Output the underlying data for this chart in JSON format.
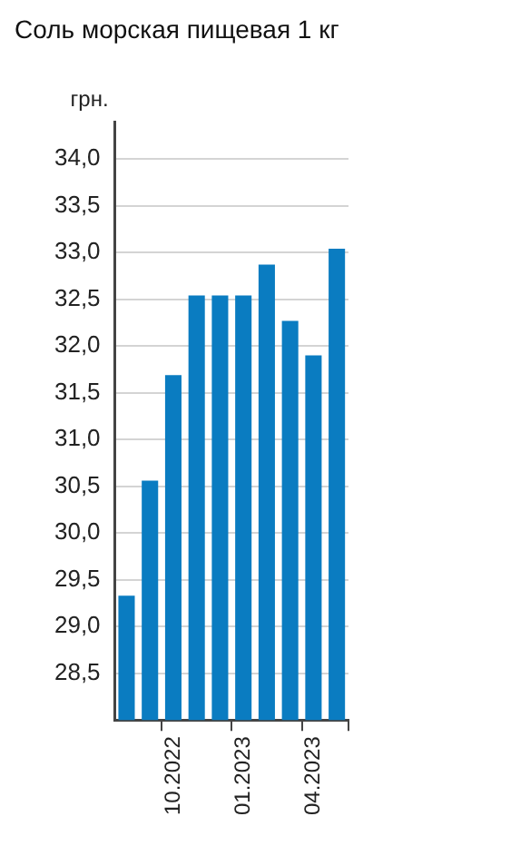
{
  "chart_data": {
    "type": "bar",
    "title": "Соль морская пищевая 1 кг",
    "ylabel": "грн.",
    "categories": [
      null,
      null,
      "10.2022",
      null,
      null,
      "01.2023",
      null,
      null,
      "04.2023",
      null
    ],
    "values": [
      29.33,
      30.56,
      31.69,
      32.54,
      32.54,
      32.54,
      32.87,
      32.27,
      31.9,
      33.04
    ],
    "color": "#0a7cc1",
    "ylim": [
      28,
      34.4
    ],
    "yticks": [
      {
        "value": 28.5,
        "label": "28,5"
      },
      {
        "value": 29,
        "label": "29,0"
      },
      {
        "value": 29.5,
        "label": "29,5"
      },
      {
        "value": 30,
        "label": "30,0"
      },
      {
        "value": 30.5,
        "label": "30,5"
      },
      {
        "value": 31,
        "label": "31,0"
      },
      {
        "value": 31.5,
        "label": "31,5"
      },
      {
        "value": 32,
        "label": "32,0"
      },
      {
        "value": 32.5,
        "label": "32,5"
      },
      {
        "value": 33,
        "label": "33,0"
      },
      {
        "value": 33.5,
        "label": "33,5"
      },
      {
        "value": 34,
        "label": "34,0"
      }
    ],
    "grid": "y",
    "legend": false
  }
}
